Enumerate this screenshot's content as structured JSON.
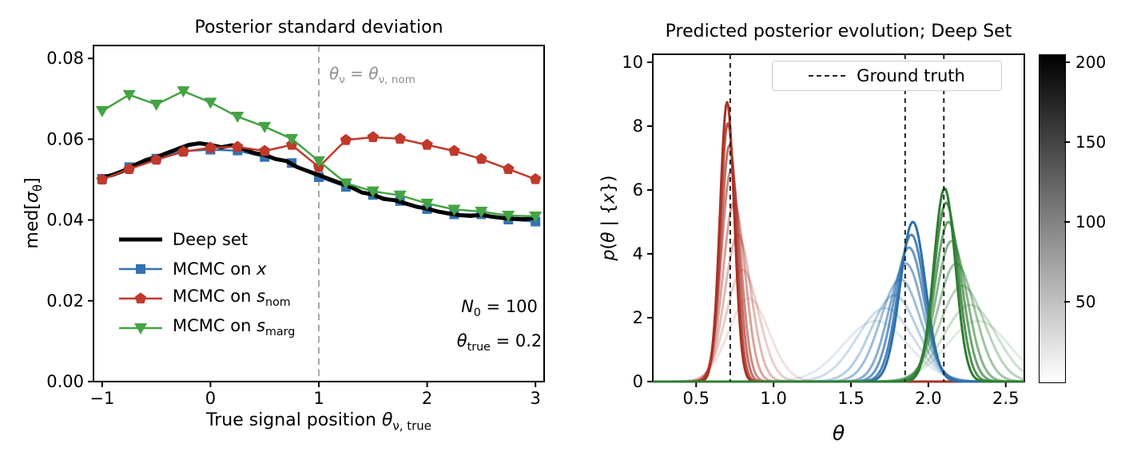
{
  "left": {
    "title": "Posterior standard deviation",
    "xlabel_rich": [
      {
        "t": "True signal position "
      },
      {
        "t": "θ",
        "i": true
      },
      {
        "t": "ν, true",
        "sub": true
      }
    ],
    "ylabel_rich": [
      {
        "t": "med["
      },
      {
        "t": "σ",
        "i": true
      },
      {
        "t": "θ",
        "sub": true
      },
      {
        "t": "]"
      }
    ],
    "vline_label_rich": [
      {
        "t": "θ",
        "i": true
      },
      {
        "t": "ν",
        "sub": true
      },
      {
        "t": " = "
      },
      {
        "t": "θ",
        "i": true
      },
      {
        "t": "ν, nom",
        "sub": true
      }
    ],
    "ann_n0_rich": [
      {
        "t": "N",
        "i": true
      },
      {
        "t": "0",
        "sub": true
      },
      {
        "t": " = 100"
      }
    ],
    "ann_theta_rich": [
      {
        "t": "θ",
        "i": true
      },
      {
        "t": "true",
        "sub": true
      },
      {
        "t": " = 0.2"
      }
    ],
    "legend": [
      {
        "rich": [
          {
            "t": "Deep set"
          }
        ],
        "marker": "line",
        "color": "#000000"
      },
      {
        "rich": [
          {
            "t": "MCMC on "
          },
          {
            "t": "x",
            "i": true
          }
        ],
        "marker": "square",
        "color": "#3572b0"
      },
      {
        "rich": [
          {
            "t": "MCMC on "
          },
          {
            "t": "s",
            "i": true
          },
          {
            "t": "nom",
            "sub": true
          }
        ],
        "marker": "pentagon",
        "color": "#c0392b"
      },
      {
        "rich": [
          {
            "t": "MCMC on "
          },
          {
            "t": "s",
            "i": true
          },
          {
            "t": "marg",
            "sub": true
          }
        ],
        "marker": "triangle-down",
        "color": "#44a344"
      }
    ]
  },
  "right": {
    "title": "Predicted posterior evolution; Deep Set",
    "xlabel_rich": [
      {
        "t": "θ",
        "i": true
      }
    ],
    "ylabel_rich": [
      {
        "t": "p",
        "i": true
      },
      {
        "t": "("
      },
      {
        "t": "θ",
        "i": true
      },
      {
        "t": " | {"
      },
      {
        "t": "x",
        "i": true
      },
      {
        "t": "})"
      }
    ],
    "legend_label": "Ground truth"
  },
  "chart_data": [
    {
      "type": "line",
      "title": "Posterior standard deviation",
      "xlabel": "True signal position θ_ν,true",
      "ylabel": "med[σ_θ]",
      "xlim": [
        -1.08,
        3.08
      ],
      "ylim": [
        0,
        0.0832
      ],
      "xticks": [
        {
          "v": -1,
          "label": "−1"
        },
        {
          "v": 0,
          "label": "0"
        },
        {
          "v": 1,
          "label": "1"
        },
        {
          "v": 2,
          "label": "2"
        },
        {
          "v": 3,
          "label": "3"
        }
      ],
      "yticks": [
        {
          "v": 0,
          "label": "0.00"
        },
        {
          "v": 0.02,
          "label": "0.02"
        },
        {
          "v": 0.04,
          "label": "0.04"
        },
        {
          "v": 0.06,
          "label": "0.06"
        },
        {
          "v": 0.08,
          "label": "0.08"
        }
      ],
      "vline": {
        "x": 1,
        "label": "θ_ν = θ_ν,nom",
        "color": "#a6a6a6"
      },
      "annotations": [
        "N_0 = 100",
        "θ_true = 0.2"
      ],
      "legend_frame": false,
      "series": [
        {
          "id": "mcmc-x",
          "name": "MCMC on x",
          "color": "#3572b0",
          "marker": "square",
          "line_width": 2.5,
          "x": [
            -1,
            -0.75,
            -0.5,
            -0.25,
            0,
            0.25,
            0.5,
            0.75,
            1,
            1.25,
            1.5,
            1.75,
            2,
            2.25,
            2.5,
            2.75,
            3
          ],
          "values": [
            0.0502,
            0.0531,
            0.0552,
            0.0571,
            0.0574,
            0.0572,
            0.0556,
            0.0541,
            0.0506,
            0.0482,
            0.0462,
            0.0447,
            0.0427,
            0.0414,
            0.0414,
            0.0401,
            0.0396
          ]
        },
        {
          "id": "deep-set",
          "name": "Deep set",
          "color": "#000000",
          "marker": "none",
          "line_width": 5,
          "x": [
            -1,
            -0.9,
            -0.8,
            -0.7,
            -0.6,
            -0.5,
            -0.4,
            -0.3,
            -0.2,
            -0.1,
            0,
            0.1,
            0.2,
            0.3,
            0.4,
            0.5,
            0.6,
            0.7,
            0.8,
            0.9,
            1,
            1.1,
            1.2,
            1.3,
            1.4,
            1.5,
            1.6,
            1.7,
            1.8,
            1.9,
            2,
            2.1,
            2.2,
            2.3,
            2.4,
            2.5,
            2.6,
            2.7,
            2.8,
            2.9,
            3
          ],
          "values": [
            0.0505,
            0.0512,
            0.0522,
            0.0536,
            0.0548,
            0.0556,
            0.0566,
            0.0576,
            0.0586,
            0.059,
            0.0586,
            0.058,
            0.0585,
            0.0576,
            0.0566,
            0.0561,
            0.0551,
            0.0546,
            0.0531,
            0.0521,
            0.0511,
            0.0501,
            0.0491,
            0.0481,
            0.0468,
            0.0463,
            0.0452,
            0.0449,
            0.0441,
            0.0433,
            0.0428,
            0.0421,
            0.0416,
            0.0412,
            0.041,
            0.0413,
            0.0408,
            0.0405,
            0.0403,
            0.0402,
            0.0406
          ]
        },
        {
          "id": "mcmc-snom",
          "name": "MCMC on s_nom",
          "color": "#c0392b",
          "marker": "pentagon",
          "line_width": 2.5,
          "x": [
            -1,
            -0.75,
            -0.5,
            -0.25,
            0,
            0.25,
            0.5,
            0.75,
            1,
            1.25,
            1.5,
            1.75,
            2,
            2.25,
            2.5,
            2.75,
            3
          ],
          "values": [
            0.05,
            0.0526,
            0.0549,
            0.0569,
            0.0579,
            0.0581,
            0.0571,
            0.0586,
            0.0531,
            0.0598,
            0.0605,
            0.0601,
            0.0586,
            0.0571,
            0.0551,
            0.0526,
            0.0501
          ]
        },
        {
          "id": "mcmc-smarg",
          "name": "MCMC on s_marg",
          "color": "#44a344",
          "marker": "triangle-down",
          "line_width": 2.5,
          "x": [
            -1,
            -0.75,
            -0.5,
            -0.25,
            0,
            0.25,
            0.5,
            0.75,
            1,
            1.25,
            1.5,
            1.75,
            2,
            2.25,
            2.5,
            2.75,
            3
          ],
          "values": [
            0.067,
            0.071,
            0.0686,
            0.0719,
            0.0691,
            0.0656,
            0.0631,
            0.0601,
            0.0546,
            0.0491,
            0.0471,
            0.0461,
            0.0441,
            0.0426,
            0.0421,
            0.0411,
            0.0409
          ]
        }
      ]
    },
    {
      "type": "line",
      "title": "Predicted posterior evolution; Deep Set",
      "xlabel": "θ",
      "ylabel": "p(θ | {x})",
      "xlim": [
        0.22,
        2.62
      ],
      "ylim": [
        0,
        10.25
      ],
      "xticks": [
        {
          "v": 0.5,
          "label": "0.5"
        },
        {
          "v": 1,
          "label": "1.0"
        },
        {
          "v": 1.5,
          "label": "1.5"
        },
        {
          "v": 2,
          "label": "2.0"
        },
        {
          "v": 2.5,
          "label": "2.5"
        }
      ],
      "yticks": [
        {
          "v": 0,
          "label": "0"
        },
        {
          "v": 2,
          "label": "2"
        },
        {
          "v": 4,
          "label": "4"
        },
        {
          "v": 6,
          "label": "6"
        },
        {
          "v": 8,
          "label": "8"
        },
        {
          "v": 10,
          "label": "10"
        }
      ],
      "ground_truth": [
        0.72,
        1.85,
        2.1
      ],
      "legend": [
        "Ground truth"
      ],
      "groups": [
        {
          "name": "posterior-group-red",
          "color": "#a93226",
          "curves": [
            {
              "center": 0.84,
              "sigma": 0.13,
              "amp": 2.6,
              "alpha": 0.15
            },
            {
              "center": 0.8,
              "sigma": 0.105,
              "amp": 3.5,
              "alpha": 0.24
            },
            {
              "center": 0.77,
              "sigma": 0.085,
              "amp": 4.6,
              "alpha": 0.34
            },
            {
              "center": 0.745,
              "sigma": 0.072,
              "amp": 5.6,
              "alpha": 0.45
            },
            {
              "center": 0.725,
              "sigma": 0.062,
              "amp": 6.6,
              "alpha": 0.57
            },
            {
              "center": 0.715,
              "sigma": 0.055,
              "amp": 7.4,
              "alpha": 0.7
            },
            {
              "center": 0.705,
              "sigma": 0.05,
              "amp": 8.1,
              "alpha": 0.84
            },
            {
              "center": 0.7,
              "sigma": 0.046,
              "amp": 8.75,
              "alpha": 1
            }
          ]
        },
        {
          "name": "posterior-group-blue",
          "color": "#2c6fad",
          "curves": [
            {
              "center": 1.66,
              "sigma": 0.21,
              "amp": 1.9,
              "alpha": 0.15
            },
            {
              "center": 1.72,
              "sigma": 0.18,
              "amp": 2.3,
              "alpha": 0.24
            },
            {
              "center": 1.78,
              "sigma": 0.15,
              "amp": 2.7,
              "alpha": 0.34
            },
            {
              "center": 1.82,
              "sigma": 0.13,
              "amp": 3.2,
              "alpha": 0.45
            },
            {
              "center": 1.855,
              "sigma": 0.11,
              "amp": 3.7,
              "alpha": 0.57
            },
            {
              "center": 1.875,
              "sigma": 0.098,
              "amp": 4.2,
              "alpha": 0.7
            },
            {
              "center": 1.89,
              "sigma": 0.088,
              "amp": 4.6,
              "alpha": 0.84
            },
            {
              "center": 1.9,
              "sigma": 0.082,
              "amp": 5.0,
              "alpha": 1
            }
          ]
        },
        {
          "name": "posterior-group-green",
          "color": "#2e7d32",
          "curves": [
            {
              "center": 2.32,
              "sigma": 0.2,
              "amp": 1.9,
              "alpha": 0.15
            },
            {
              "center": 2.27,
              "sigma": 0.17,
              "amp": 2.4,
              "alpha": 0.24
            },
            {
              "center": 2.22,
              "sigma": 0.145,
              "amp": 3.0,
              "alpha": 0.34
            },
            {
              "center": 2.18,
              "sigma": 0.12,
              "amp": 3.7,
              "alpha": 0.45
            },
            {
              "center": 2.15,
              "sigma": 0.1,
              "amp": 4.4,
              "alpha": 0.57
            },
            {
              "center": 2.13,
              "sigma": 0.088,
              "amp": 5.0,
              "alpha": 0.7
            },
            {
              "center": 2.115,
              "sigma": 0.078,
              "amp": 5.6,
              "alpha": 0.84
            },
            {
              "center": 2.105,
              "sigma": 0.07,
              "amp": 6.05,
              "alpha": 1
            }
          ]
        }
      ],
      "colorbar": {
        "ticks": [
          50,
          100,
          150,
          200
        ],
        "vmin": 0,
        "vmax": 205,
        "top_color": "#000000",
        "bottom_color": "#ffffff"
      }
    }
  ]
}
